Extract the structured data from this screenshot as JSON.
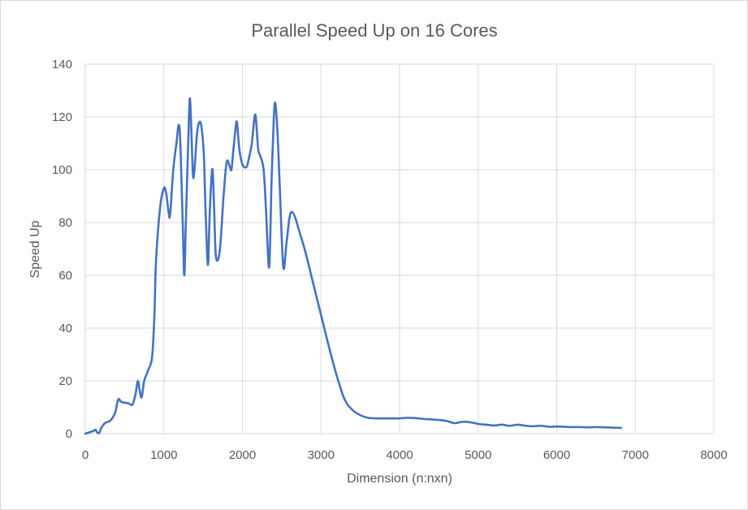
{
  "chart_data": {
    "type": "line",
    "title": "Parallel Speed Up on 16 Cores",
    "xlabel": "Dimension (n:nxn)",
    "ylabel": "Speed Up",
    "xlim": [
      0,
      8000
    ],
    "ylim": [
      0,
      140
    ],
    "xticks": [
      0,
      1000,
      2000,
      3000,
      4000,
      5000,
      6000,
      7000,
      8000
    ],
    "yticks": [
      0,
      20,
      40,
      60,
      80,
      100,
      120,
      140
    ],
    "grid": true,
    "legend": "none",
    "series": [
      {
        "color": "#4472c4",
        "points": [
          [
            0,
            0
          ],
          [
            100,
            1
          ],
          [
            130,
            1.5
          ],
          [
            150,
            0.5
          ],
          [
            180,
            0.3
          ],
          [
            200,
            2
          ],
          [
            250,
            4
          ],
          [
            320,
            5
          ],
          [
            380,
            8
          ],
          [
            420,
            13
          ],
          [
            460,
            12
          ],
          [
            550,
            11.5
          ],
          [
            600,
            11
          ],
          [
            640,
            15
          ],
          [
            670,
            20
          ],
          [
            700,
            15
          ],
          [
            720,
            14
          ],
          [
            750,
            20
          ],
          [
            800,
            24
          ],
          [
            850,
            29
          ],
          [
            880,
            45
          ],
          [
            900,
            65
          ],
          [
            950,
            85
          ],
          [
            1000,
            93
          ],
          [
            1030,
            91
          ],
          [
            1060,
            84
          ],
          [
            1080,
            83
          ],
          [
            1120,
            100
          ],
          [
            1160,
            110
          ],
          [
            1190,
            117
          ],
          [
            1210,
            110
          ],
          [
            1240,
            80
          ],
          [
            1260,
            60
          ],
          [
            1280,
            80
          ],
          [
            1310,
            110
          ],
          [
            1330,
            127
          ],
          [
            1350,
            115
          ],
          [
            1370,
            98
          ],
          [
            1390,
            100
          ],
          [
            1420,
            113
          ],
          [
            1450,
            118
          ],
          [
            1480,
            116
          ],
          [
            1510,
            105
          ],
          [
            1530,
            85
          ],
          [
            1560,
            64
          ],
          [
            1580,
            80
          ],
          [
            1600,
            94
          ],
          [
            1620,
            100
          ],
          [
            1640,
            85
          ],
          [
            1660,
            68
          ],
          [
            1690,
            66
          ],
          [
            1720,
            72
          ],
          [
            1760,
            90
          ],
          [
            1800,
            103
          ],
          [
            1840,
            101
          ],
          [
            1860,
            100
          ],
          [
            1880,
            106
          ],
          [
            1910,
            115
          ],
          [
            1930,
            118
          ],
          [
            1960,
            108
          ],
          [
            2000,
            102
          ],
          [
            2050,
            101
          ],
          [
            2080,
            104
          ],
          [
            2120,
            110
          ],
          [
            2150,
            119
          ],
          [
            2170,
            120
          ],
          [
            2200,
            108
          ],
          [
            2230,
            105
          ],
          [
            2270,
            100
          ],
          [
            2300,
            85
          ],
          [
            2340,
            63
          ],
          [
            2370,
            95
          ],
          [
            2400,
            120
          ],
          [
            2420,
            125
          ],
          [
            2450,
            112
          ],
          [
            2480,
            90
          ],
          [
            2520,
            63
          ],
          [
            2560,
            72
          ],
          [
            2600,
            82
          ],
          [
            2630,
            84
          ],
          [
            2670,
            82
          ],
          [
            2720,
            77
          ],
          [
            2800,
            69
          ],
          [
            2900,
            57
          ],
          [
            3000,
            45
          ],
          [
            3100,
            33
          ],
          [
            3200,
            22
          ],
          [
            3300,
            13
          ],
          [
            3400,
            9
          ],
          [
            3500,
            7
          ],
          [
            3600,
            6
          ],
          [
            3700,
            5.8
          ],
          [
            3800,
            5.8
          ],
          [
            3900,
            5.8
          ],
          [
            4000,
            5.8
          ],
          [
            4100,
            6
          ],
          [
            4200,
            5.9
          ],
          [
            4300,
            5.6
          ],
          [
            4400,
            5.4
          ],
          [
            4500,
            5.2
          ],
          [
            4600,
            4.8
          ],
          [
            4700,
            4
          ],
          [
            4800,
            4.5
          ],
          [
            4900,
            4.3
          ],
          [
            5000,
            3.7
          ],
          [
            5100,
            3.4
          ],
          [
            5200,
            3.1
          ],
          [
            5300,
            3.4
          ],
          [
            5400,
            3
          ],
          [
            5500,
            3.4
          ],
          [
            5600,
            3
          ],
          [
            5700,
            2.8
          ],
          [
            5800,
            3
          ],
          [
            5900,
            2.6
          ],
          [
            6000,
            2.7
          ],
          [
            6100,
            2.6
          ],
          [
            6200,
            2.5
          ],
          [
            6300,
            2.5
          ],
          [
            6400,
            2.4
          ],
          [
            6500,
            2.5
          ],
          [
            6600,
            2.4
          ],
          [
            6700,
            2.3
          ],
          [
            6800,
            2.2
          ],
          [
            6820,
            2.2
          ]
        ]
      }
    ]
  }
}
